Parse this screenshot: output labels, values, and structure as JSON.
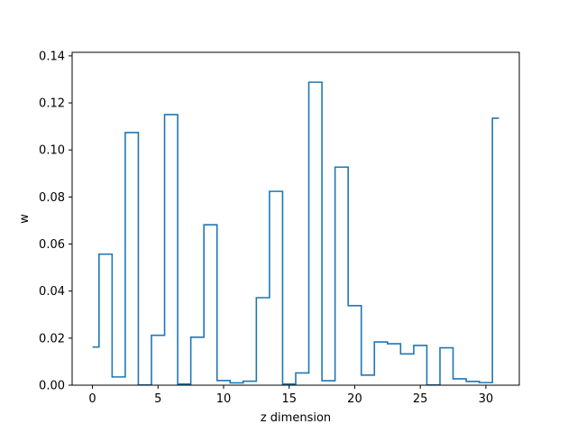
{
  "chart_data": {
    "type": "line",
    "drawstyle": "steps-mid",
    "title": "",
    "xlabel": "z dimension",
    "ylabel": "w",
    "xlim": [
      -1.55,
      32.55
    ],
    "ylim": [
      0.0,
      0.1415
    ],
    "xticks": [
      0,
      5,
      10,
      15,
      20,
      25,
      30
    ],
    "xtick_labels": [
      "0",
      "5",
      "10",
      "15",
      "20",
      "25",
      "30"
    ],
    "yticks": [
      0.0,
      0.02,
      0.04,
      0.06,
      0.08,
      0.1,
      0.12,
      0.14
    ],
    "ytick_labels": [
      "0.00",
      "0.02",
      "0.04",
      "0.06",
      "0.08",
      "0.10",
      "0.12",
      "0.14"
    ],
    "grid": false,
    "legend": "none",
    "colors": {
      "series": "#1f77b4",
      "axes": "#000000",
      "background": "#ffffff"
    },
    "series": [
      {
        "x": [
          0,
          1,
          2,
          3,
          4,
          5,
          6,
          7,
          8,
          9,
          10,
          11,
          12,
          13,
          14,
          15,
          16,
          17,
          18,
          19,
          20,
          21,
          22,
          23,
          24,
          25,
          26,
          27,
          28,
          29,
          30,
          31
        ],
        "values": [
          0.0162,
          0.0557,
          0.0035,
          0.1074,
          0.0001,
          0.0212,
          0.115,
          0.0005,
          0.0204,
          0.0682,
          0.002,
          0.001,
          0.0017,
          0.0372,
          0.0824,
          0.0005,
          0.0052,
          0.1288,
          0.0019,
          0.0927,
          0.0338,
          0.0043,
          0.0184,
          0.0176,
          0.0133,
          0.0169,
          0.0001,
          0.0159,
          0.0027,
          0.0016,
          0.0011,
          0.1135
        ]
      }
    ]
  }
}
